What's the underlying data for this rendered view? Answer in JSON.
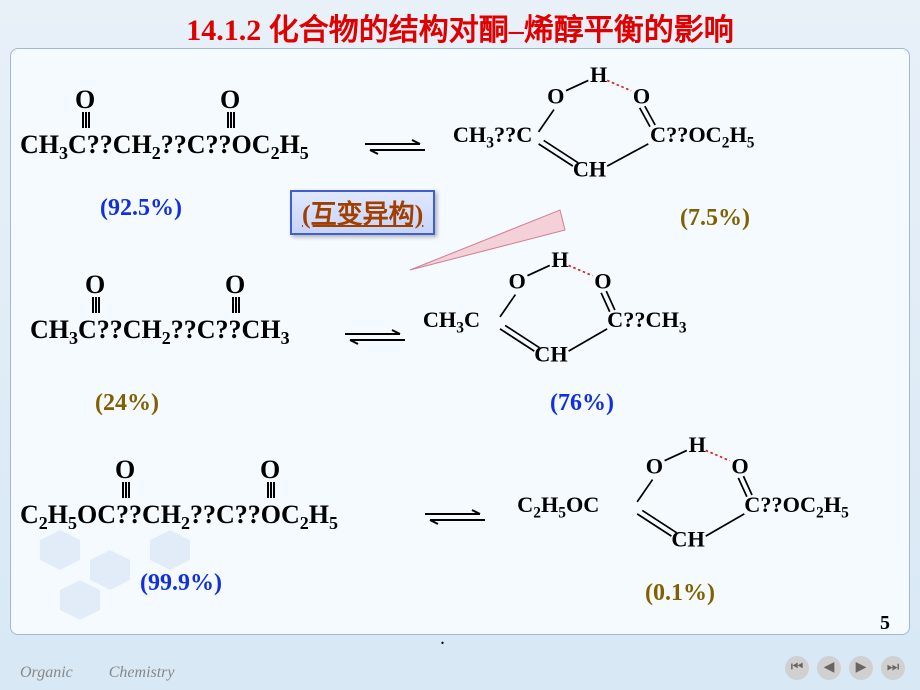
{
  "title": "14.1.2 化合物的结构对酮–烯醇平衡的影响",
  "callout": "(互变异构)",
  "rows": [
    {
      "keto_formula": "CH<sub>3</sub>C??CH<sub>2</sub>??C??OC<sub>2</sub>H<sub>5</sub>",
      "enol_left": "CH<sub>3</sub>??C",
      "enol_right": "C??OC<sub>2</sub>H<sub>5</sub>",
      "keto_pct": "(92.5%)",
      "enol_pct": "(7.5%)",
      "keto_pct_color": "blue",
      "enol_pct_color": "brown"
    },
    {
      "keto_formula": "CH<sub>3</sub>C??CH<sub>2</sub>??C??CH<sub>3</sub>",
      "enol_left": "CH<sub>3</sub>C",
      "enol_right": "C??CH<sub>3</sub>",
      "keto_pct": "(24%)",
      "enol_pct": "(76%)",
      "keto_pct_color": "brown",
      "enol_pct_color": "blue"
    },
    {
      "keto_formula": "C<sub>2</sub>H<sub>5</sub>OC??CH<sub>2</sub>??C??OC<sub>2</sub>H<sub>5</sub>",
      "enol_left": "C<sub>2</sub>H<sub>5</sub>OC",
      "enol_right": "C??OC<sub>2</sub>H<sub>5</sub>",
      "keto_pct": "(99.9%)",
      "enol_pct": "(0.1%)",
      "keto_pct_color": "blue",
      "enol_pct_color": "brown"
    }
  ],
  "atoms": {
    "O": "O",
    "H": "H",
    "CH": "CH"
  },
  "footer": {
    "left": "Organic",
    "left2": "Chemistry"
  },
  "page": "5",
  "colors": {
    "title": "#e00000",
    "blue": "#1030e0",
    "brown": "#806000",
    "hbond": "#e02020",
    "callout_border": "#4060d0"
  },
  "nav": {
    "first": "⏮",
    "prev": "◀",
    "next": "▶",
    "last": "⏭"
  }
}
